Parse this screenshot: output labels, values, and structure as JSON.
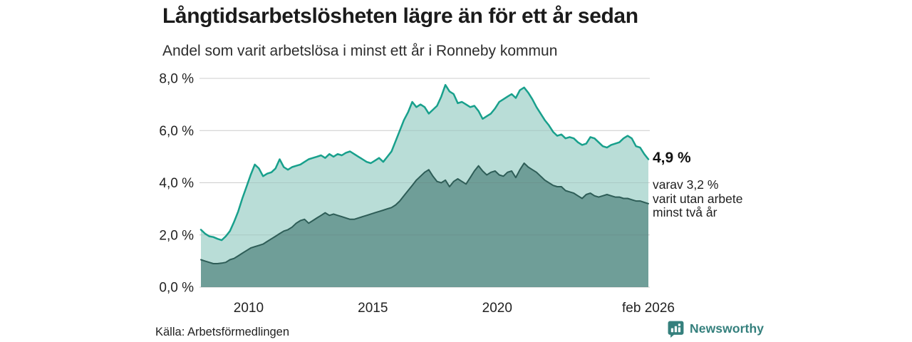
{
  "header": {
    "title": "Långtidsarbetslösheten lägre än för ett år sedan",
    "subtitle": "Andel som varit arbetslösa i minst ett år i Ronneby kommun"
  },
  "annotations": {
    "latest_total": "4,9 %",
    "secondary_line1": "varav 3,2 %",
    "secondary_line2": "varit utan arbete",
    "secondary_line3": "minst två år"
  },
  "footer": {
    "source": "Källa: Arbetsförmedlingen",
    "brand": "Newsworthy"
  },
  "colors": {
    "brand_teal": "#35807d",
    "series_total_stroke": "#18a08c",
    "series_total_fill": "#b9ddd7",
    "series_twoyear_stroke": "#2e5d57",
    "series_twoyear_fill": "#6f9e98",
    "grid": "#e0e0e0",
    "title_text": "#1b1b1b"
  },
  "icons": {
    "brand_logo": "newsworthy-bar-chart-speech-bubble-icon"
  },
  "chart_data": {
    "type": "area",
    "title": "Långtidsarbetslösheten lägre än för ett år sedan",
    "subtitle": "Andel som varit arbetslösa i minst ett år i Ronneby kommun",
    "unit": "%",
    "grid": true,
    "xlim": [
      2008.083,
      2026.083
    ],
    "ylim": [
      0,
      8
    ],
    "x_step": 0.1666667,
    "x_ticks": [
      {
        "x": 2010,
        "label": "2010"
      },
      {
        "x": 2015,
        "label": "2015"
      },
      {
        "x": 2020,
        "label": "2020"
      },
      {
        "x": 2026.083,
        "label": "feb 2026"
      }
    ],
    "y_ticks": [
      {
        "v": 0,
        "label": "0,0 %"
      },
      {
        "v": 2,
        "label": "2,0 %"
      },
      {
        "v": 4,
        "label": "4,0 %"
      },
      {
        "v": 6,
        "label": "6,0 %"
      },
      {
        "v": 8,
        "label": "8,0 %"
      }
    ],
    "series": [
      {
        "name": "Arbetslösa minst ett år",
        "stroke": "#18a08c",
        "fill": "#b9ddd7",
        "width": 2.5,
        "latest_value": 4.9,
        "values": [
          2.2,
          2.05,
          1.95,
          1.92,
          1.85,
          1.8,
          1.95,
          2.15,
          2.5,
          2.9,
          3.4,
          3.85,
          4.3,
          4.7,
          4.55,
          4.25,
          4.35,
          4.4,
          4.55,
          4.9,
          4.6,
          4.5,
          4.6,
          4.65,
          4.7,
          4.8,
          4.9,
          4.95,
          5.0,
          5.05,
          4.95,
          5.1,
          5.0,
          5.1,
          5.05,
          5.15,
          5.2,
          5.1,
          5.0,
          4.9,
          4.8,
          4.75,
          4.85,
          4.95,
          4.8,
          5.0,
          5.2,
          5.6,
          6.0,
          6.4,
          6.7,
          7.1,
          6.9,
          7.0,
          6.9,
          6.65,
          6.8,
          6.95,
          7.3,
          7.75,
          7.5,
          7.4,
          7.05,
          7.1,
          7.0,
          6.9,
          6.95,
          6.75,
          6.45,
          6.55,
          6.65,
          6.85,
          7.1,
          7.2,
          7.3,
          7.4,
          7.25,
          7.55,
          7.65,
          7.45,
          7.2,
          6.9,
          6.65,
          6.4,
          6.2,
          5.95,
          5.8,
          5.85,
          5.7,
          5.75,
          5.7,
          5.55,
          5.45,
          5.5,
          5.75,
          5.7,
          5.55,
          5.4,
          5.35,
          5.45,
          5.5,
          5.55,
          5.7,
          5.8,
          5.7,
          5.4,
          5.35,
          5.1,
          4.9
        ]
      },
      {
        "name": "Arbetslösa minst två år",
        "stroke": "#2e5d57",
        "fill": "#6f9e98",
        "width": 2,
        "latest_value": 3.2,
        "values": [
          1.05,
          1.0,
          0.95,
          0.9,
          0.9,
          0.92,
          0.95,
          1.05,
          1.1,
          1.2,
          1.3,
          1.4,
          1.5,
          1.55,
          1.6,
          1.65,
          1.75,
          1.85,
          1.95,
          2.05,
          2.15,
          2.2,
          2.3,
          2.45,
          2.55,
          2.6,
          2.45,
          2.55,
          2.65,
          2.75,
          2.85,
          2.75,
          2.8,
          2.75,
          2.7,
          2.65,
          2.6,
          2.6,
          2.65,
          2.7,
          2.75,
          2.8,
          2.85,
          2.9,
          2.95,
          3.0,
          3.05,
          3.15,
          3.3,
          3.5,
          3.7,
          3.9,
          4.1,
          4.25,
          4.4,
          4.5,
          4.25,
          4.05,
          4.0,
          4.1,
          3.85,
          4.05,
          4.15,
          4.05,
          3.95,
          4.2,
          4.45,
          4.65,
          4.45,
          4.3,
          4.4,
          4.45,
          4.3,
          4.25,
          4.4,
          4.45,
          4.2,
          4.5,
          4.75,
          4.6,
          4.5,
          4.4,
          4.25,
          4.1,
          4.0,
          3.9,
          3.85,
          3.85,
          3.7,
          3.65,
          3.6,
          3.5,
          3.4,
          3.55,
          3.6,
          3.5,
          3.45,
          3.5,
          3.55,
          3.5,
          3.45,
          3.45,
          3.4,
          3.4,
          3.35,
          3.3,
          3.3,
          3.25,
          3.2
        ]
      }
    ]
  }
}
